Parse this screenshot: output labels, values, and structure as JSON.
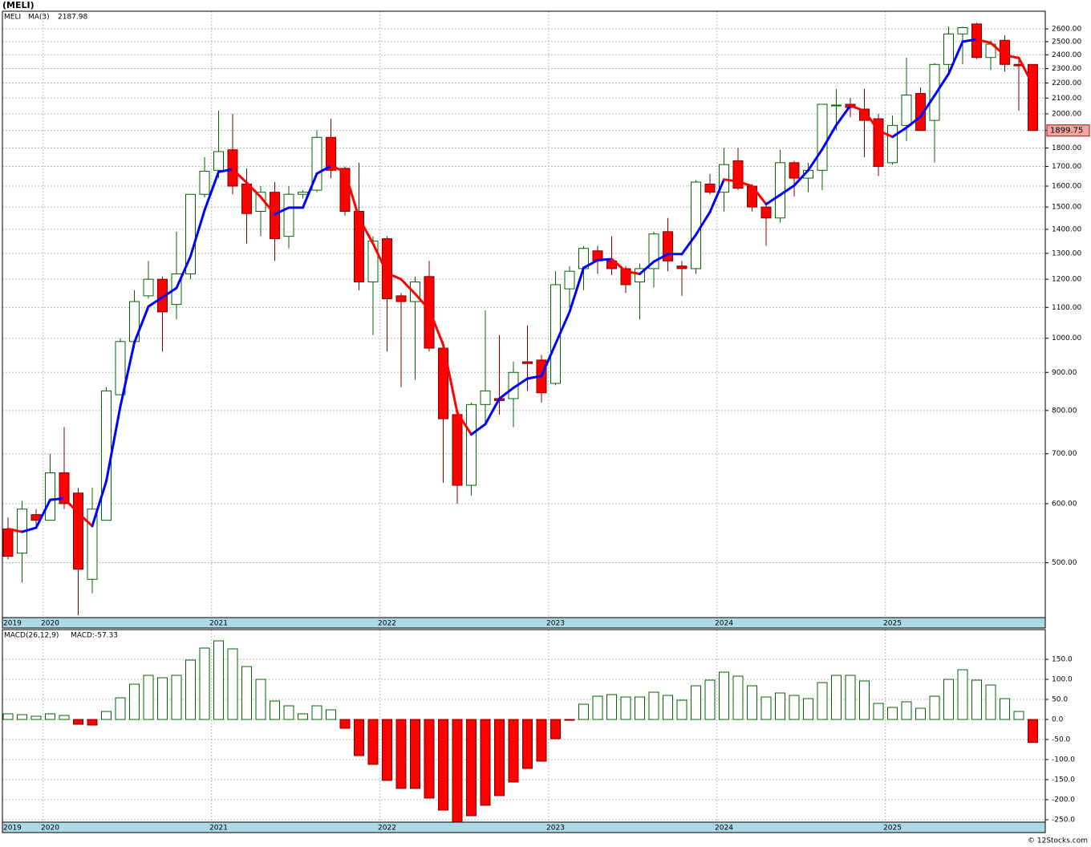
{
  "chart_data": [
    {
      "type": "candlestick",
      "title": "(MELI)",
      "log_scale": true,
      "grid": true,
      "categories": [
        "2019",
        null,
        null,
        "2020",
        null,
        null,
        null,
        null,
        null,
        null,
        null,
        null,
        null,
        null,
        null,
        "2021",
        null,
        null,
        null,
        null,
        null,
        null,
        null,
        null,
        null,
        null,
        null,
        "2022",
        null,
        null,
        null,
        null,
        null,
        null,
        null,
        null,
        null,
        null,
        null,
        "2023",
        null,
        null,
        null,
        null,
        null,
        null,
        null,
        null,
        null,
        null,
        null,
        "2024",
        null,
        null,
        null,
        null,
        null,
        null,
        null,
        null,
        null,
        null,
        null,
        "2025",
        null,
        null,
        null,
        null,
        null,
        null,
        null,
        null,
        null,
        null
      ],
      "series": [
        {
          "name": "MELI",
          "up_color": "#ffffff",
          "down_color": "#ff0000",
          "up_edge": "#006400",
          "down_edge": "#800000",
          "legend_color": "#008000",
          "open": [
            555,
            515,
            580,
            570,
            660,
            620,
            475,
            570,
            840,
            990,
            1140,
            1200,
            1110,
            1220,
            1560,
            1680,
            1790,
            1610,
            1480,
            1570,
            1370,
            1560,
            1580,
            1860,
            1690,
            1480,
            1190,
            1360,
            1140,
            1120,
            1210,
            970,
            790,
            635,
            815,
            830,
            830,
            930,
            935,
            870,
            1165,
            1240,
            1310,
            1270,
            1240,
            1190,
            1240,
            1390,
            1250,
            1240,
            1610,
            1570,
            1730,
            1600,
            1500,
            1450,
            1720,
            1640,
            1680,
            2050,
            2060,
            2030,
            1970,
            1720,
            1930,
            2130,
            1960,
            2330,
            2560,
            2640,
            2380,
            2510,
            2330,
            2330
          ],
          "high": [
            575,
            605,
            590,
            700,
            760,
            630,
            630,
            860,
            1000,
            1160,
            1270,
            1210,
            1390,
            1560,
            1750,
            2020,
            2000,
            1690,
            1600,
            1620,
            1600,
            1580,
            1900,
            1970,
            1700,
            1720,
            1370,
            1370,
            1150,
            1210,
            1270,
            990,
            800,
            820,
            1090,
            1010,
            930,
            1040,
            950,
            1230,
            1250,
            1330,
            1330,
            1370,
            1250,
            1260,
            1390,
            1450,
            1270,
            1630,
            1660,
            1800,
            1800,
            1610,
            1520,
            1790,
            1730,
            1720,
            2060,
            2160,
            2100,
            2160,
            2000,
            1990,
            2380,
            2170,
            2340,
            2620,
            2620,
            2650,
            2510,
            2550,
            2380,
            2330
          ],
          "low": [
            505,
            470,
            560,
            570,
            590,
            425,
            455,
            570,
            840,
            970,
            1130,
            960,
            1060,
            1200,
            1545,
            1640,
            1560,
            1340,
            1370,
            1270,
            1320,
            1540,
            1570,
            1640,
            1460,
            1160,
            1010,
            960,
            860,
            880,
            960,
            640,
            600,
            615,
            770,
            790,
            760,
            850,
            820,
            865,
            1100,
            1160,
            1220,
            1215,
            1150,
            1060,
            1170,
            1230,
            1140,
            1220,
            1560,
            1480,
            1580,
            1480,
            1330,
            1430,
            1550,
            1570,
            1580,
            1900,
            1980,
            1750,
            1650,
            1710,
            1840,
            1900,
            1720,
            2260,
            2330,
            2370,
            2290,
            2280,
            2020,
            1900
          ],
          "close": [
            510,
            590,
            570,
            660,
            600,
            490,
            590,
            850,
            990,
            1120,
            1200,
            1085,
            1220,
            1560,
            1675,
            1780,
            1600,
            1470,
            1570,
            1360,
            1560,
            1570,
            1860,
            1680,
            1480,
            1190,
            1350,
            1130,
            1120,
            1190,
            970,
            780,
            635,
            815,
            850,
            825,
            900,
            925,
            845,
            1180,
            1230,
            1320,
            1270,
            1240,
            1180,
            1240,
            1380,
            1270,
            1240,
            1620,
            1570,
            1710,
            1590,
            1500,
            1450,
            1720,
            1640,
            1680,
            2060,
            2055,
            2040,
            1960,
            1700,
            1930,
            2120,
            1900,
            2330,
            2560,
            2610,
            2380,
            2480,
            2330,
            2320,
            1899.75
          ],
          "last_price_fill": "#f4a4a4"
        },
        {
          "name": "MA(3)",
          "rising_color": "#0000ff",
          "falling_color": "#ff0000",
          "values": [
            555,
            550,
            557,
            607,
            610,
            583,
            560,
            643,
            810,
            987,
            1103,
            1135,
            1168,
            1288,
            1485,
            1672,
            1685,
            1617,
            1547,
            1467,
            1497,
            1497,
            1663,
            1703,
            1673,
            1450,
            1340,
            1223,
            1200,
            1147,
            1093,
            980,
            795,
            743,
            767,
            830,
            858,
            883,
            890,
            983,
            1085,
            1243,
            1273,
            1277,
            1230,
            1220,
            1267,
            1297,
            1297,
            1377,
            1477,
            1633,
            1623,
            1600,
            1513,
            1557,
            1603,
            1680,
            1793,
            1932,
            2052,
            2018,
            1900,
            1863,
            1917,
            1983,
            2117,
            2263,
            2500,
            2517,
            2490,
            2397,
            2377,
            2187.98
          ]
        }
      ],
      "ylim": [
        422,
        2746
      ],
      "yticks": [
        {
          "value": 500,
          "label": "500.00"
        },
        {
          "value": 600,
          "label": "600.00"
        },
        {
          "value": 700,
          "label": "700.00"
        },
        {
          "value": 800,
          "label": "800.00"
        },
        {
          "value": 900,
          "label": "900.00"
        },
        {
          "value": 1000,
          "label": "1000.00"
        },
        {
          "value": 1100,
          "label": "1100.00"
        },
        {
          "value": 1200,
          "label": "1200.00"
        },
        {
          "value": 1300,
          "label": "1300.00"
        },
        {
          "value": 1400,
          "label": "1400.00"
        },
        {
          "value": 1500,
          "label": "1500.00"
        },
        {
          "value": 1600,
          "label": "1600.00"
        },
        {
          "value": 1700,
          "label": "1700.00"
        },
        {
          "value": 1800,
          "label": "1800.00"
        },
        {
          "value": 1900,
          "label": "1900.00"
        },
        {
          "value": 2000,
          "label": "2000.00"
        },
        {
          "value": 2100,
          "label": "2100.00"
        },
        {
          "value": 2200,
          "label": "2200.00"
        },
        {
          "value": 2300,
          "label": "2300.00"
        },
        {
          "value": 2400,
          "label": "2400.00"
        },
        {
          "value": 2500,
          "label": "2500.00"
        },
        {
          "value": 2600,
          "label": "2600.00"
        }
      ],
      "axis_band_color": "#add8e6"
    },
    {
      "type": "bar",
      "title": "MACD(26,12,9)",
      "legend_label": "MACD:-57.33",
      "legend_color": "#0000ff",
      "grid": true,
      "categories": [
        "2019",
        null,
        null,
        "2020",
        null,
        null,
        null,
        null,
        null,
        null,
        null,
        null,
        null,
        null,
        null,
        "2021",
        null,
        null,
        null,
        null,
        null,
        null,
        null,
        null,
        null,
        null,
        null,
        "2022",
        null,
        null,
        null,
        null,
        null,
        null,
        null,
        null,
        null,
        null,
        null,
        "2023",
        null,
        null,
        null,
        null,
        null,
        null,
        null,
        null,
        null,
        null,
        null,
        "2024",
        null,
        null,
        null,
        null,
        null,
        null,
        null,
        null,
        null,
        null,
        null,
        "2025",
        null,
        null,
        null,
        null,
        null,
        null,
        null,
        null,
        null,
        null
      ],
      "values": [
        14,
        12,
        8,
        14,
        10,
        -12,
        -14,
        20,
        54,
        88,
        110,
        104,
        110,
        148,
        178,
        196,
        176,
        132,
        100,
        46,
        34,
        14,
        34,
        24,
        -22,
        -90,
        -112,
        -152,
        -172,
        -172,
        -196,
        -226,
        -255,
        -240,
        -214,
        -190,
        -156,
        -122,
        -104,
        -48,
        -2,
        38,
        58,
        62,
        56,
        56,
        68,
        60,
        48,
        84,
        98,
        118,
        108,
        84,
        56,
        66,
        60,
        52,
        92,
        110,
        110,
        96,
        40,
        30,
        44,
        28,
        58,
        100,
        124,
        98,
        86,
        52,
        20,
        -57.33
      ],
      "positive_color": "#ffffff",
      "positive_edge": "#006400",
      "negative_color": "#ff0000",
      "negative_edge": "#800000",
      "ylim": [
        -256,
        224
      ],
      "yticks": [
        {
          "value": -250,
          "label": "-250.0"
        },
        {
          "value": -200,
          "label": "-200.0"
        },
        {
          "value": -150,
          "label": "-150.0"
        },
        {
          "value": -100,
          "label": "-100.0"
        },
        {
          "value": -50,
          "label": "-50.0"
        },
        {
          "value": 0,
          "label": "0.0"
        },
        {
          "value": 50,
          "label": "50.0"
        },
        {
          "value": 100,
          "label": "100.0"
        },
        {
          "value": 150,
          "label": "150.0"
        }
      ],
      "axis_band_color": "#add8e6"
    }
  ],
  "footer": "© 12Stocks.com"
}
